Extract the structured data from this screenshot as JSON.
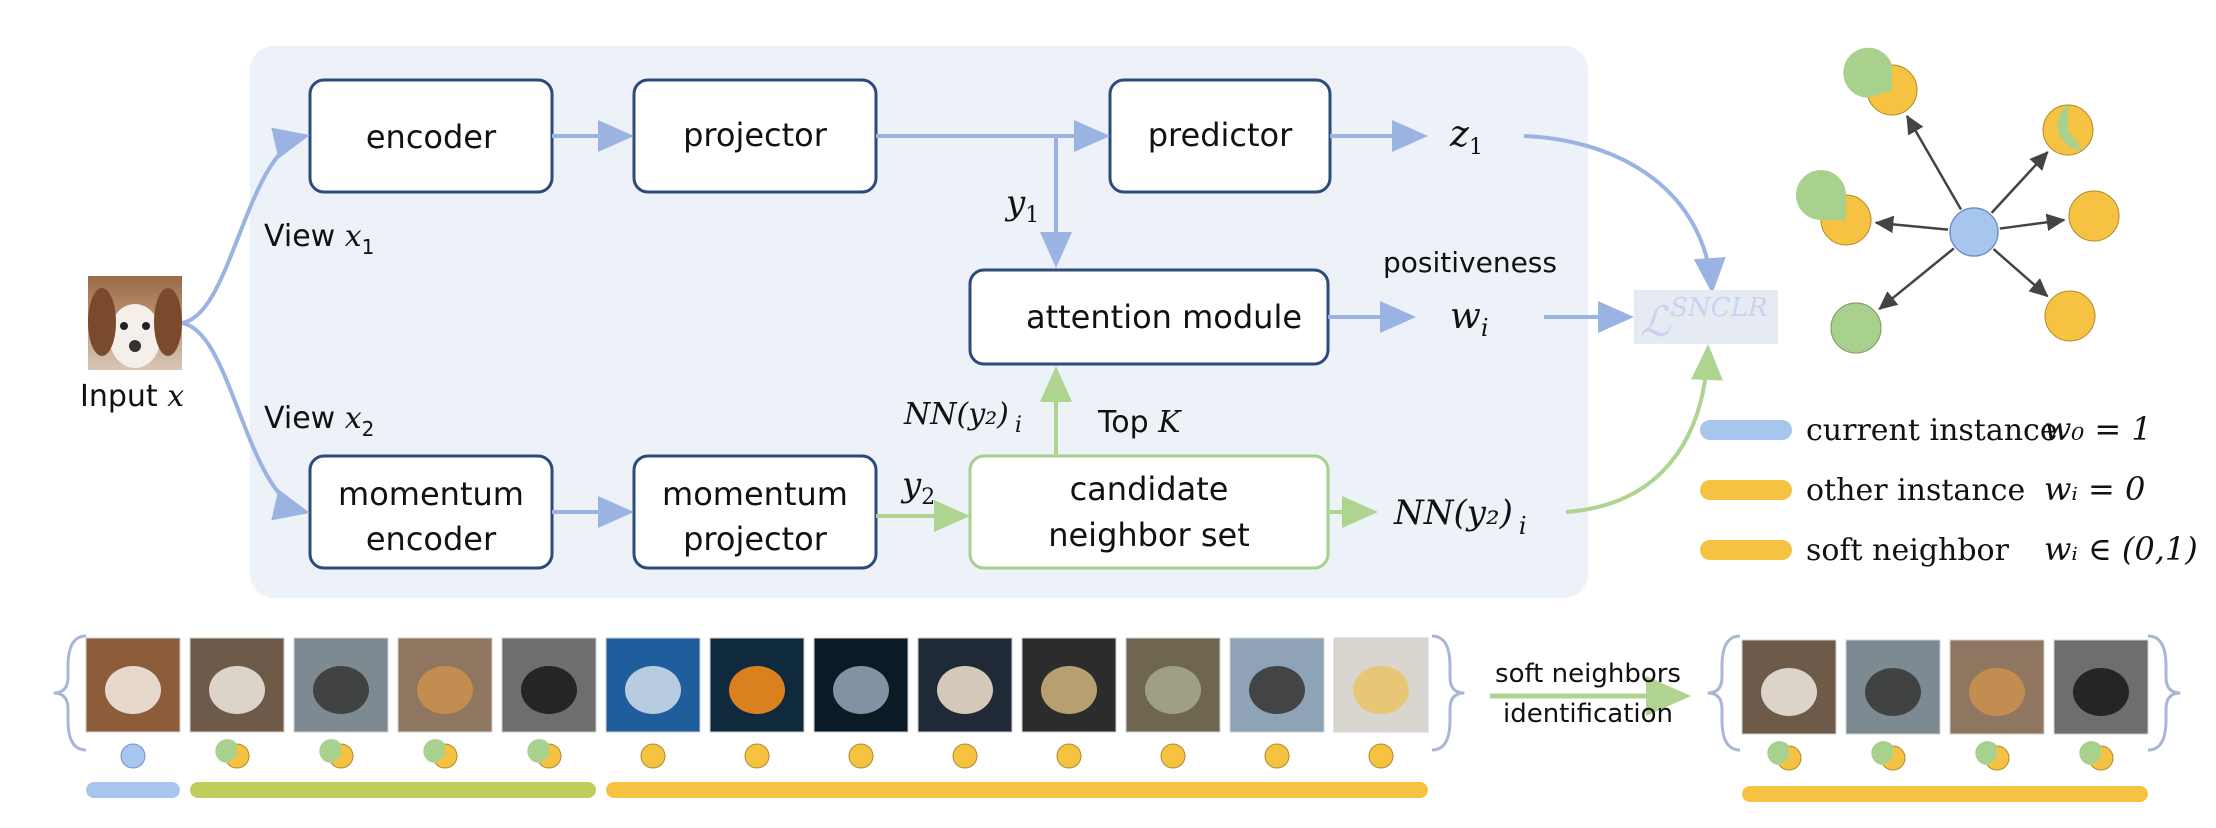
{
  "boxes": {
    "encoder": "encoder",
    "projector": "projector",
    "predictor": "predictor",
    "attention": "attention module",
    "momentum_encoder_l1": "momentum",
    "momentum_encoder_l2": "encoder",
    "momentum_projector_l1": "momentum",
    "momentum_projector_l2": "projector",
    "candidate_l1": "candidate",
    "candidate_l2": "neighbor set"
  },
  "labels": {
    "view1_prefix": "View ",
    "view1_var": "x",
    "view1_sub": "1",
    "view2_prefix": "View ",
    "view2_var": "x",
    "view2_sub": "2",
    "input_prefix": "Input ",
    "input_var": "x",
    "y1_var": "y",
    "y1_sub": "1",
    "y2_var": "y",
    "y2_sub": "2",
    "z1_var": "z",
    "z1_sub": "1",
    "nn_top": "NN(y₂)",
    "nn_top_sub": "i",
    "top_k_prefix": "Top ",
    "top_k_var": "K",
    "nn_out": "NN(y₂)",
    "nn_out_sub": "i",
    "positiveness": "positiveness",
    "wi_var": "w",
    "wi_sub": "i",
    "loss_symbol": "ℒ",
    "loss_sup": "SNCLR",
    "soft_neighbors_l1": "soft neighbors",
    "soft_neighbors_l2": "identification"
  },
  "legend": [
    {
      "label": "current instance",
      "weight": "w₀ = 1",
      "color": "#a6c6ee"
    },
    {
      "label": "other instance",
      "weight": "wᵢ = 0",
      "color": "#f5c242"
    },
    {
      "label": "soft neighbor",
      "weight": "wᵢ ∈ (0,1)",
      "color": "#f5c242"
    }
  ],
  "colors": {
    "blue_flow": "#9bb3e3",
    "green_flow": "#aed48f",
    "box_border": "#2c4a7a",
    "green_border": "#a7d08c",
    "panel_bg": "#edf1f8",
    "blue_dot": "#a6c6ee",
    "yellow_dot": "#f5c242",
    "green_dot": "#a9d18e"
  },
  "graph": {
    "center": "current instance",
    "neighbors": [
      {
        "kind": "soft",
        "green_fraction": 0.7
      },
      {
        "kind": "soft",
        "green_fraction": 0.4
      },
      {
        "kind": "soft",
        "green_fraction": 0.75
      },
      {
        "kind": "other",
        "green_fraction": 0
      },
      {
        "kind": "green",
        "green_fraction": 1
      },
      {
        "kind": "other",
        "green_fraction": 0
      }
    ]
  },
  "gallery": {
    "images": [
      "dog",
      "puppy",
      "seal",
      "deer",
      "rottweiler",
      "shark",
      "goldfish",
      "dolphin",
      "hand",
      "fish",
      "trout",
      "bicycle",
      "dessert"
    ],
    "pies": [
      "blue",
      "soft",
      "soft",
      "soft",
      "soft",
      "other",
      "other",
      "other",
      "other",
      "other",
      "other",
      "other",
      "other"
    ],
    "selected": [
      "puppy",
      "seal",
      "deer",
      "rottweiler"
    ],
    "selected_pies": [
      "soft",
      "soft",
      "soft",
      "soft"
    ]
  }
}
